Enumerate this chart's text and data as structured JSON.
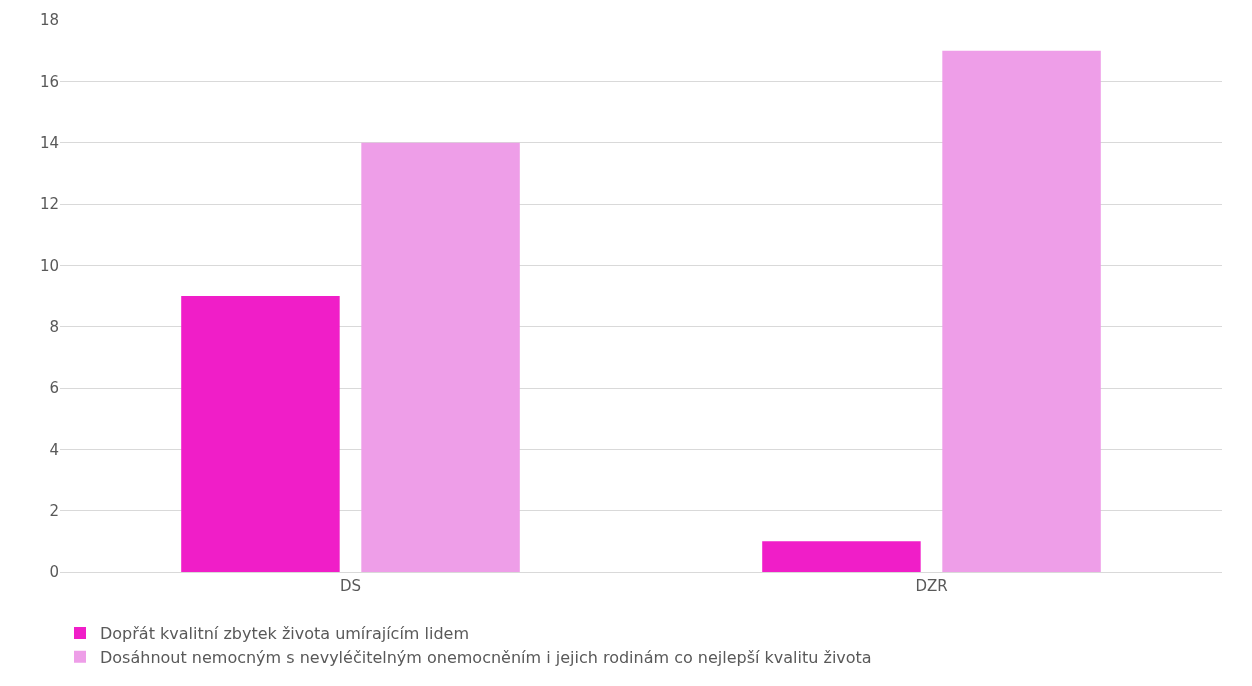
{
  "chart_data": {
    "type": "bar",
    "categories": [
      "DS",
      "DZR"
    ],
    "series": [
      {
        "name": "Dopřát kvalitní zbytek života umírajícím lidem",
        "color": "#f01ec8",
        "values": [
          9,
          1
        ]
      },
      {
        "name": "Dosáhnout nemocným s nevyléčitelným onemocněním i jejich rodinám co nejlepší kvalitu života",
        "color": "#ee9ee8",
        "values": [
          14,
          17
        ]
      }
    ],
    "ylim": [
      0,
      18
    ],
    "yticks": [
      0,
      2,
      4,
      6,
      8,
      10,
      12,
      14,
      16,
      18
    ],
    "grid": "y",
    "legend": "bottom left"
  }
}
